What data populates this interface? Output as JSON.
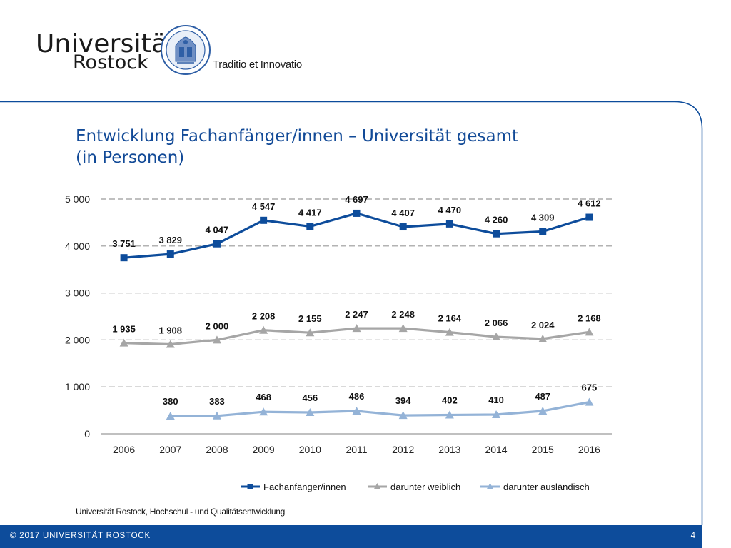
{
  "header": {
    "logo_line1": "Universität",
    "logo_line2": "Rostock",
    "seal_text": "Gegründet 1419",
    "motto": "Traditio et Innovatio"
  },
  "slide": {
    "title_line1": "Entwicklung Fachanfänger/innen – Universität gesamt",
    "title_line2": "(in Personen)",
    "source": "Universität Rostock, Hochschul - und Qualitätsentwicklung"
  },
  "footer": {
    "copyright": "©  2017  UNIVERSITÄT ROSTOCK",
    "page_number": "4"
  },
  "colors": {
    "brand_blue": "#0d4c9b",
    "title_blue": "#124a97",
    "series_total": "#0d4c9b",
    "series_female": "#a6a6a6",
    "series_foreign": "#94b3d7"
  },
  "chart_data": {
    "type": "line",
    "categories": [
      "2006",
      "2007",
      "2008",
      "2009",
      "2010",
      "2011",
      "2012",
      "2013",
      "2014",
      "2015",
      "2016"
    ],
    "ylim": [
      0,
      5000
    ],
    "yticks": [
      0,
      1000,
      2000,
      3000,
      4000,
      5000
    ],
    "ytick_labels": [
      "0",
      "1 000",
      "2 000",
      "3 000",
      "4 000",
      "5 000"
    ],
    "grid": "horizontal dashed",
    "legend_position": "bottom-right",
    "series": [
      {
        "name": "Fachanfänger/innen",
        "marker": "square",
        "values": [
          3751,
          3829,
          4047,
          4547,
          4417,
          4697,
          4407,
          4470,
          4260,
          4309,
          4612
        ],
        "labels": [
          "3 751",
          "3 829",
          "4 047",
          "4 547",
          "4 417",
          "4 697",
          "4 407",
          "4 470",
          "4 260",
          "4 309",
          "4 612"
        ]
      },
      {
        "name": "darunter weiblich",
        "marker": "triangle",
        "values": [
          1935,
          1908,
          2000,
          2208,
          2155,
          2247,
          2248,
          2164,
          2066,
          2024,
          2168
        ],
        "labels": [
          "1 935",
          "1 908",
          "2 000",
          "2 208",
          "2 155",
          "2 247",
          "2 248",
          "2 164",
          "2 066",
          "2 024",
          "2 168"
        ]
      },
      {
        "name": "darunter ausländisch",
        "marker": "triangle",
        "values": [
          null,
          380,
          383,
          468,
          456,
          486,
          394,
          402,
          410,
          487,
          675
        ],
        "labels": [
          null,
          "380",
          "383",
          "468",
          "456",
          "486",
          "394",
          "402",
          "410",
          "487",
          "675"
        ]
      }
    ]
  }
}
